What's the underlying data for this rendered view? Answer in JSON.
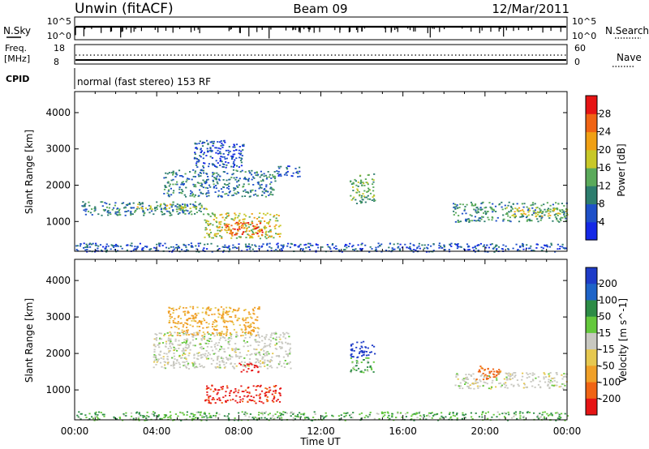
{
  "header": {
    "station": "Unwin (fitACF)",
    "beam": "Beam 09",
    "date": "12/Mar/2011"
  },
  "top_panels": {
    "nsky_label": "N.Sky",
    "nsky_ticks": [
      "10^5",
      "10^0"
    ],
    "nsearch_label": "N.Search",
    "nsearch_ticks": [
      "10^5",
      "10^0"
    ],
    "freq_label_line1": "Freq.",
    "freq_label_line2": "[MHz]",
    "freq_ticks": [
      "18",
      "8"
    ],
    "nave_label": "Nave",
    "nave_ticks": [
      "60",
      "0"
    ],
    "cpid_label": "CPID",
    "cpid_text": "normal (fast stereo) 153 RF"
  },
  "colors": {
    "power_scale": [
      "#1428e6",
      "#1e50c8",
      "#2d7d6e",
      "#5aaa5a",
      "#c8c828",
      "#f0a014",
      "#f06414",
      "#e61414"
    ],
    "velocity_scale": [
      "#1e3cc8",
      "#1e64c8",
      "#2d8c46",
      "#64c83c",
      "#c8c8c0",
      "#e6c850",
      "#f0a028",
      "#f06414",
      "#e61414"
    ],
    "background": "#ffffff",
    "ground_scatter": "#b4b4b4"
  },
  "chart_data": [
    {
      "type": "heatmap",
      "title": "",
      "quantity": "Power",
      "xlabel": "",
      "ylabel": "Slant Range [km]",
      "x_ticks": [
        "00:00",
        "04:00",
        "08:00",
        "12:00",
        "16:00",
        "20:00",
        "00:00"
      ],
      "y_ticks": [
        "1000",
        "2000",
        "3000",
        "4000"
      ],
      "xlim_hours": [
        0,
        24
      ],
      "ylim_km": [
        180,
        4580
      ],
      "colorbar_label": "Power [dB]",
      "colorbar_ticks": [
        "4",
        "8",
        "12",
        "16",
        "20",
        "24",
        "28"
      ],
      "colorbar_range": [
        0,
        32
      ],
      "regions": [
        {
          "t0": 0.3,
          "t1": 6.3,
          "r0": 1180,
          "r1": 1560,
          "value": 10
        },
        {
          "t0": 3.0,
          "t1": 6.5,
          "r0": 1350,
          "r1": 1500,
          "value": 16
        },
        {
          "t0": 4.3,
          "t1": 9.8,
          "r0": 1700,
          "r1": 2450,
          "value": 9
        },
        {
          "t0": 5.8,
          "t1": 8.2,
          "r0": 2500,
          "r1": 3250,
          "value": 6
        },
        {
          "t0": 6.3,
          "t1": 10.0,
          "r0": 550,
          "r1": 1250,
          "value": 18
        },
        {
          "t0": 7.2,
          "t1": 9.5,
          "r0": 650,
          "r1": 1000,
          "value": 26
        },
        {
          "t0": 9.8,
          "t1": 11.0,
          "r0": 2250,
          "r1": 2550,
          "value": 6
        },
        {
          "t0": 13.4,
          "t1": 14.6,
          "r0": 1500,
          "r1": 2350,
          "value": 14
        },
        {
          "t0": 18.4,
          "t1": 24.0,
          "r0": 1000,
          "r1": 1550,
          "value": 11
        },
        {
          "t0": 21.0,
          "t1": 24.0,
          "r0": 1150,
          "r1": 1400,
          "value": 18
        },
        {
          "t0": 0.0,
          "t1": 24.0,
          "r0": 180,
          "r1": 420,
          "value": 6
        }
      ]
    },
    {
      "type": "heatmap",
      "title": "",
      "quantity": "Velocity",
      "xlabel": "Time UT",
      "ylabel": "Slant Range [km]",
      "x_ticks": [
        "00:00",
        "04:00",
        "08:00",
        "12:00",
        "16:00",
        "20:00",
        "00:00"
      ],
      "y_ticks": [
        "1000",
        "2000",
        "3000",
        "4000"
      ],
      "xlim_hours": [
        0,
        24
      ],
      "ylim_km": [
        180,
        4580
      ],
      "colorbar_label": "Velocity [m s^-1]",
      "colorbar_ticks": [
        "200",
        "100",
        "50",
        "15",
        "-15",
        "-50",
        "-100",
        "-200"
      ],
      "regions": [
        {
          "t0": 3.8,
          "t1": 10.5,
          "r0": 1600,
          "r1": 2600,
          "value": 0
        },
        {
          "t0": 4.5,
          "t1": 9.0,
          "r0": 2500,
          "r1": 3300,
          "value": -40
        },
        {
          "t0": 6.3,
          "t1": 10.0,
          "r0": 650,
          "r1": 1150,
          "value": -160
        },
        {
          "t0": 8.0,
          "t1": 9.0,
          "r0": 1500,
          "r1": 1750,
          "value": -220
        },
        {
          "t0": 13.4,
          "t1": 14.6,
          "r0": 1900,
          "r1": 2350,
          "value": 180
        },
        {
          "t0": 13.4,
          "t1": 14.6,
          "r0": 1500,
          "r1": 1900,
          "value": 30
        },
        {
          "t0": 18.5,
          "t1": 24.0,
          "r0": 1050,
          "r1": 1500,
          "value": 0
        },
        {
          "t0": 19.5,
          "t1": 20.8,
          "r0": 1300,
          "r1": 1700,
          "value": -90
        },
        {
          "t0": 0.0,
          "t1": 24.0,
          "r0": 180,
          "r1": 420,
          "value": 30
        }
      ]
    }
  ]
}
